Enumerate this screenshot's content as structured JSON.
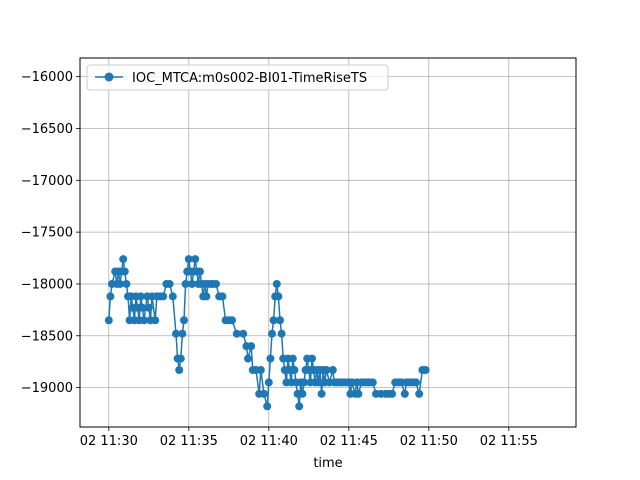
{
  "chart_data": {
    "type": "line",
    "title": "",
    "xlabel": "time",
    "ylabel": "",
    "grid": true,
    "legend_position": "top-left",
    "series_color": "#1f77b4",
    "x_ticks": [
      {
        "minute": 30,
        "label": "02 11:30"
      },
      {
        "minute": 35,
        "label": "02 11:35"
      },
      {
        "minute": 40,
        "label": "02 11:40"
      },
      {
        "minute": 45,
        "label": "02 11:45"
      },
      {
        "minute": 50,
        "label": "02 11:50"
      },
      {
        "minute": 55,
        "label": "02 11:55"
      }
    ],
    "y_ticks": [
      {
        "value": -19000,
        "label": "−19000"
      },
      {
        "value": -18500,
        "label": "−18500"
      },
      {
        "value": -18000,
        "label": "−18000"
      },
      {
        "value": -17500,
        "label": "−17500"
      },
      {
        "value": -17000,
        "label": "−17000"
      },
      {
        "value": -16500,
        "label": "−16500"
      },
      {
        "value": -16000,
        "label": "−16000"
      }
    ],
    "xlim": [
      "11:28.2",
      "11:59.2"
    ],
    "ylim": [
      -19380,
      -15820
    ],
    "series": [
      {
        "name": "IOC_MTCA:m0s002-BI01-TimeRiseTS",
        "points": [
          [
            "11:30.0",
            -18350
          ],
          [
            "11:30.1",
            -18120
          ],
          [
            "11:30.2",
            -18000
          ],
          [
            "11:30.4",
            -17880
          ],
          [
            "11:30.5",
            -18000
          ],
          [
            "11:30.6",
            -17880
          ],
          [
            "11:30.7",
            -18000
          ],
          [
            "11:30.8",
            -17880
          ],
          [
            "11:30.9",
            -17760
          ],
          [
            "11:31.0",
            -17880
          ],
          [
            "11:31.1",
            -18000
          ],
          [
            "11:31.2",
            -18120
          ],
          [
            "11:31.3",
            -18350
          ],
          [
            "11:31.4",
            -18120
          ],
          [
            "11:31.5",
            -18230
          ],
          [
            "11:31.6",
            -18350
          ],
          [
            "11:31.7",
            -18120
          ],
          [
            "11:31.8",
            -18230
          ],
          [
            "11:31.9",
            -18350
          ],
          [
            "11:32.0",
            -18120
          ],
          [
            "11:32.1",
            -18230
          ],
          [
            "11:32.2",
            -18350
          ],
          [
            "11:32.4",
            -18120
          ],
          [
            "11:32.5",
            -18230
          ],
          [
            "11:32.6",
            -18350
          ],
          [
            "11:32.7",
            -18120
          ],
          [
            "11:32.9",
            -18350
          ],
          [
            "11:33.0",
            -18120
          ],
          [
            "11:33.2",
            -18120
          ],
          [
            "11:33.4",
            -18120
          ],
          [
            "11:33.6",
            -18000
          ],
          [
            "11:33.8",
            -18000
          ],
          [
            "11:34.0",
            -18120
          ],
          [
            "11:34.2",
            -18480
          ],
          [
            "11:34.3",
            -18720
          ],
          [
            "11:34.4",
            -18830
          ],
          [
            "11:34.5",
            -18720
          ],
          [
            "11:34.6",
            -18480
          ],
          [
            "11:34.7",
            -18350
          ],
          [
            "11:34.8",
            -18000
          ],
          [
            "11:34.9",
            -17880
          ],
          [
            "11:35.0",
            -17760
          ],
          [
            "11:35.1",
            -17880
          ],
          [
            "11:35.2",
            -18000
          ],
          [
            "11:35.3",
            -17880
          ],
          [
            "11:35.4",
            -17760
          ],
          [
            "11:35.5",
            -17880
          ],
          [
            "11:35.6",
            -18000
          ],
          [
            "11:35.7",
            -17880
          ],
          [
            "11:35.8",
            -18000
          ],
          [
            "11:35.9",
            -18120
          ],
          [
            "11:36.0",
            -18000
          ],
          [
            "11:36.1",
            -18120
          ],
          [
            "11:36.2",
            -18000
          ],
          [
            "11:36.4",
            -18000
          ],
          [
            "11:36.5",
            -18000
          ],
          [
            "11:36.7",
            -18000
          ],
          [
            "11:36.9",
            -18120
          ],
          [
            "11:37.1",
            -18120
          ],
          [
            "11:37.3",
            -18350
          ],
          [
            "11:37.5",
            -18350
          ],
          [
            "11:37.7",
            -18350
          ],
          [
            "11:38.0",
            -18480
          ],
          [
            "11:38.4",
            -18480
          ],
          [
            "11:38.6",
            -18600
          ],
          [
            "11:38.7",
            -18720
          ],
          [
            "11:38.9",
            -18600
          ],
          [
            "11:39.0",
            -18830
          ],
          [
            "11:39.2",
            -18830
          ],
          [
            "11:39.4",
            -19060
          ],
          [
            "11:39.5",
            -18830
          ],
          [
            "11:39.7",
            -19060
          ],
          [
            "11:39.9",
            -19180
          ],
          [
            "11:40.0",
            -18950
          ],
          [
            "11:40.1",
            -18720
          ],
          [
            "11:40.2",
            -18480
          ],
          [
            "11:40.3",
            -18350
          ],
          [
            "11:40.4",
            -18120
          ],
          [
            "11:40.5",
            -18000
          ],
          [
            "11:40.6",
            -18120
          ],
          [
            "11:40.7",
            -18350
          ],
          [
            "11:40.8",
            -18480
          ],
          [
            "11:40.9",
            -18720
          ],
          [
            "11:41.0",
            -18830
          ],
          [
            "11:41.1",
            -18950
          ],
          [
            "11:41.2",
            -18720
          ],
          [
            "11:41.3",
            -18830
          ],
          [
            "11:41.4",
            -18950
          ],
          [
            "11:41.5",
            -18720
          ],
          [
            "11:41.6",
            -18830
          ],
          [
            "11:41.7",
            -18950
          ],
          [
            "11:41.8",
            -19060
          ],
          [
            "11:41.9",
            -19180
          ],
          [
            "11:42.0",
            -18950
          ],
          [
            "11:42.1",
            -19060
          ],
          [
            "11:42.2",
            -18950
          ],
          [
            "11:42.3",
            -18830
          ],
          [
            "11:42.4",
            -18720
          ],
          [
            "11:42.5",
            -18830
          ],
          [
            "11:42.6",
            -18950
          ],
          [
            "11:42.7",
            -18720
          ],
          [
            "11:42.8",
            -18830
          ],
          [
            "11:42.9",
            -18950
          ],
          [
            "11:43.0",
            -18830
          ],
          [
            "11:43.1",
            -18950
          ],
          [
            "11:43.2",
            -18830
          ],
          [
            "11:43.3",
            -19060
          ],
          [
            "11:43.4",
            -18830
          ],
          [
            "11:43.5",
            -18950
          ],
          [
            "11:43.6",
            -18830
          ],
          [
            "11:43.8",
            -18950
          ],
          [
            "11:44.0",
            -18830
          ],
          [
            "11:44.1",
            -18950
          ],
          [
            "11:44.3",
            -18950
          ],
          [
            "11:44.5",
            -18950
          ],
          [
            "11:44.6",
            -18950
          ],
          [
            "11:44.8",
            -18950
          ],
          [
            "11:45.0",
            -18950
          ],
          [
            "11:45.1",
            -19060
          ],
          [
            "11:45.2",
            -18950
          ],
          [
            "11:45.4",
            -19060
          ],
          [
            "11:45.5",
            -18950
          ],
          [
            "11:45.6",
            -19060
          ],
          [
            "11:45.8",
            -18950
          ],
          [
            "11:46.0",
            -18950
          ],
          [
            "11:46.2",
            -18950
          ],
          [
            "11:46.3",
            -18950
          ],
          [
            "11:46.5",
            -18950
          ],
          [
            "11:46.7",
            -19060
          ],
          [
            "11:47.0",
            -19060
          ],
          [
            "11:47.3",
            -19060
          ],
          [
            "11:47.5",
            -19060
          ],
          [
            "11:47.7",
            -19060
          ],
          [
            "11:47.9",
            -18950
          ],
          [
            "11:48.1",
            -18950
          ],
          [
            "11:48.3",
            -18950
          ],
          [
            "11:48.5",
            -19060
          ],
          [
            "11:48.6",
            -18950
          ],
          [
            "11:48.8",
            -18950
          ],
          [
            "11:49.0",
            -18950
          ],
          [
            "11:49.2",
            -18950
          ],
          [
            "11:49.4",
            -19060
          ],
          [
            "11:49.6",
            -18830
          ],
          [
            "11:49.8",
            -18830
          ]
        ]
      }
    ]
  },
  "legend": {
    "label": "IOC_MTCA:m0s002-BI01-TimeRiseTS"
  }
}
